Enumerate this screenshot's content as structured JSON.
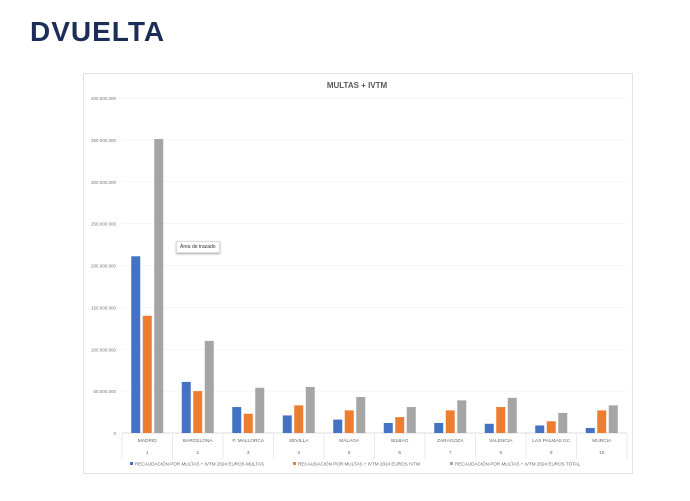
{
  "logo": {
    "text": "DVUELTA"
  },
  "chart_data": {
    "type": "bar",
    "title": "MULTAS + IVTM",
    "categories": [
      "MADRID",
      "BARCELONA",
      "P. MALLORCA",
      "SEVILLA",
      "MÁLAGA",
      "BILBAO",
      "ZARAGOZA",
      "VALENCIA",
      "LAS PALMAS GC",
      "MURCIA"
    ],
    "ranks": [
      "1",
      "2",
      "3",
      "4",
      "5",
      "6",
      "7",
      "8",
      "9",
      "10"
    ],
    "series": [
      {
        "name": "RECAUDACIÓN POR MULTAS + IVTM 2024 EUROS MULTAS",
        "color": "#4472c4",
        "values": [
          211000000,
          61000000,
          31000000,
          21000000,
          16000000,
          12000000,
          12000000,
          11000000,
          9000000,
          6000000
        ]
      },
      {
        "name": "RECAUDACIÓN POR MULTAS + IVTM 2024 EUROS IVTM",
        "color": "#ed7d31",
        "values": [
          140000000,
          50000000,
          23000000,
          33000000,
          27000000,
          19000000,
          27000000,
          31000000,
          14000000,
          27000000
        ]
      },
      {
        "name": "RECAUDACIÓN POR MULTAS + IVTM 2024 EUROS TOTAL",
        "color": "#a5a5a5",
        "values": [
          351000000,
          110000000,
          54000000,
          55000000,
          43000000,
          31000000,
          39000000,
          42000000,
          24000000,
          33000000
        ]
      }
    ],
    "yticks": [
      "0",
      "50.000.000",
      "100.000.000",
      "150.000.000",
      "200.000.000",
      "250.000.000",
      "300.000.000",
      "350.000.000",
      "400.000.000"
    ],
    "ylim": [
      0,
      400000000
    ],
    "grid": true,
    "legend": "bottom",
    "tooltip": "Área de trazado"
  }
}
